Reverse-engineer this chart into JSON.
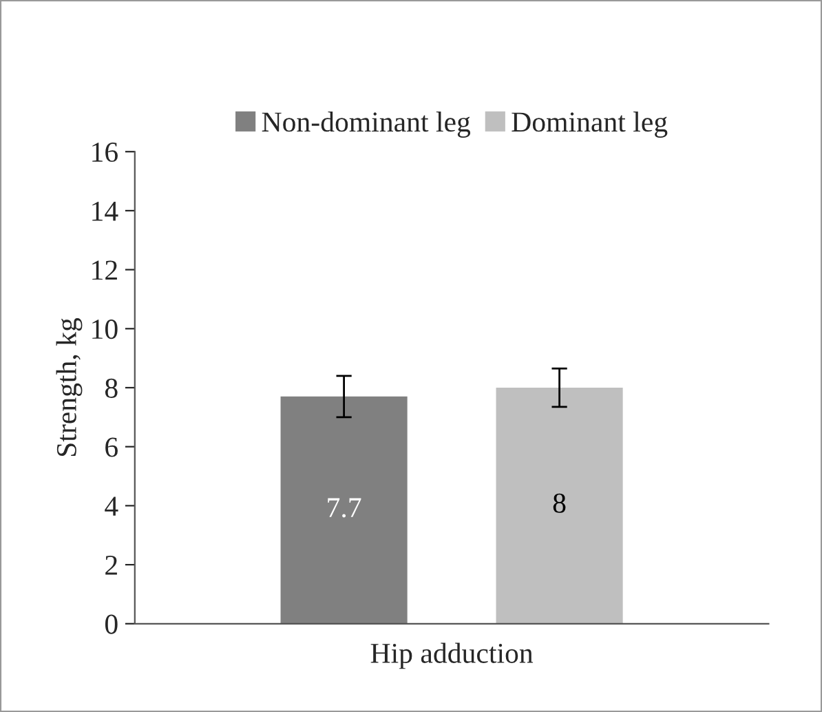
{
  "chart_data": {
    "type": "bar",
    "ylabel": "Strength, kg",
    "categories": [
      "Hip adduction"
    ],
    "series": [
      {
        "name": "Non-dominant leg",
        "color": "#808080",
        "values": [
          7.7
        ],
        "errors": [
          0.7
        ],
        "value_labels": [
          "7.7"
        ]
      },
      {
        "name": "Dominant leg",
        "color": "#bfbfbf",
        "values": [
          8
        ],
        "errors": [
          0.65
        ],
        "value_labels": [
          "8"
        ]
      }
    ],
    "ylim": [
      0,
      16
    ],
    "yticks": [
      0,
      2,
      4,
      6,
      8,
      10,
      12,
      14,
      16
    ],
    "grid": false,
    "legend": "top"
  }
}
